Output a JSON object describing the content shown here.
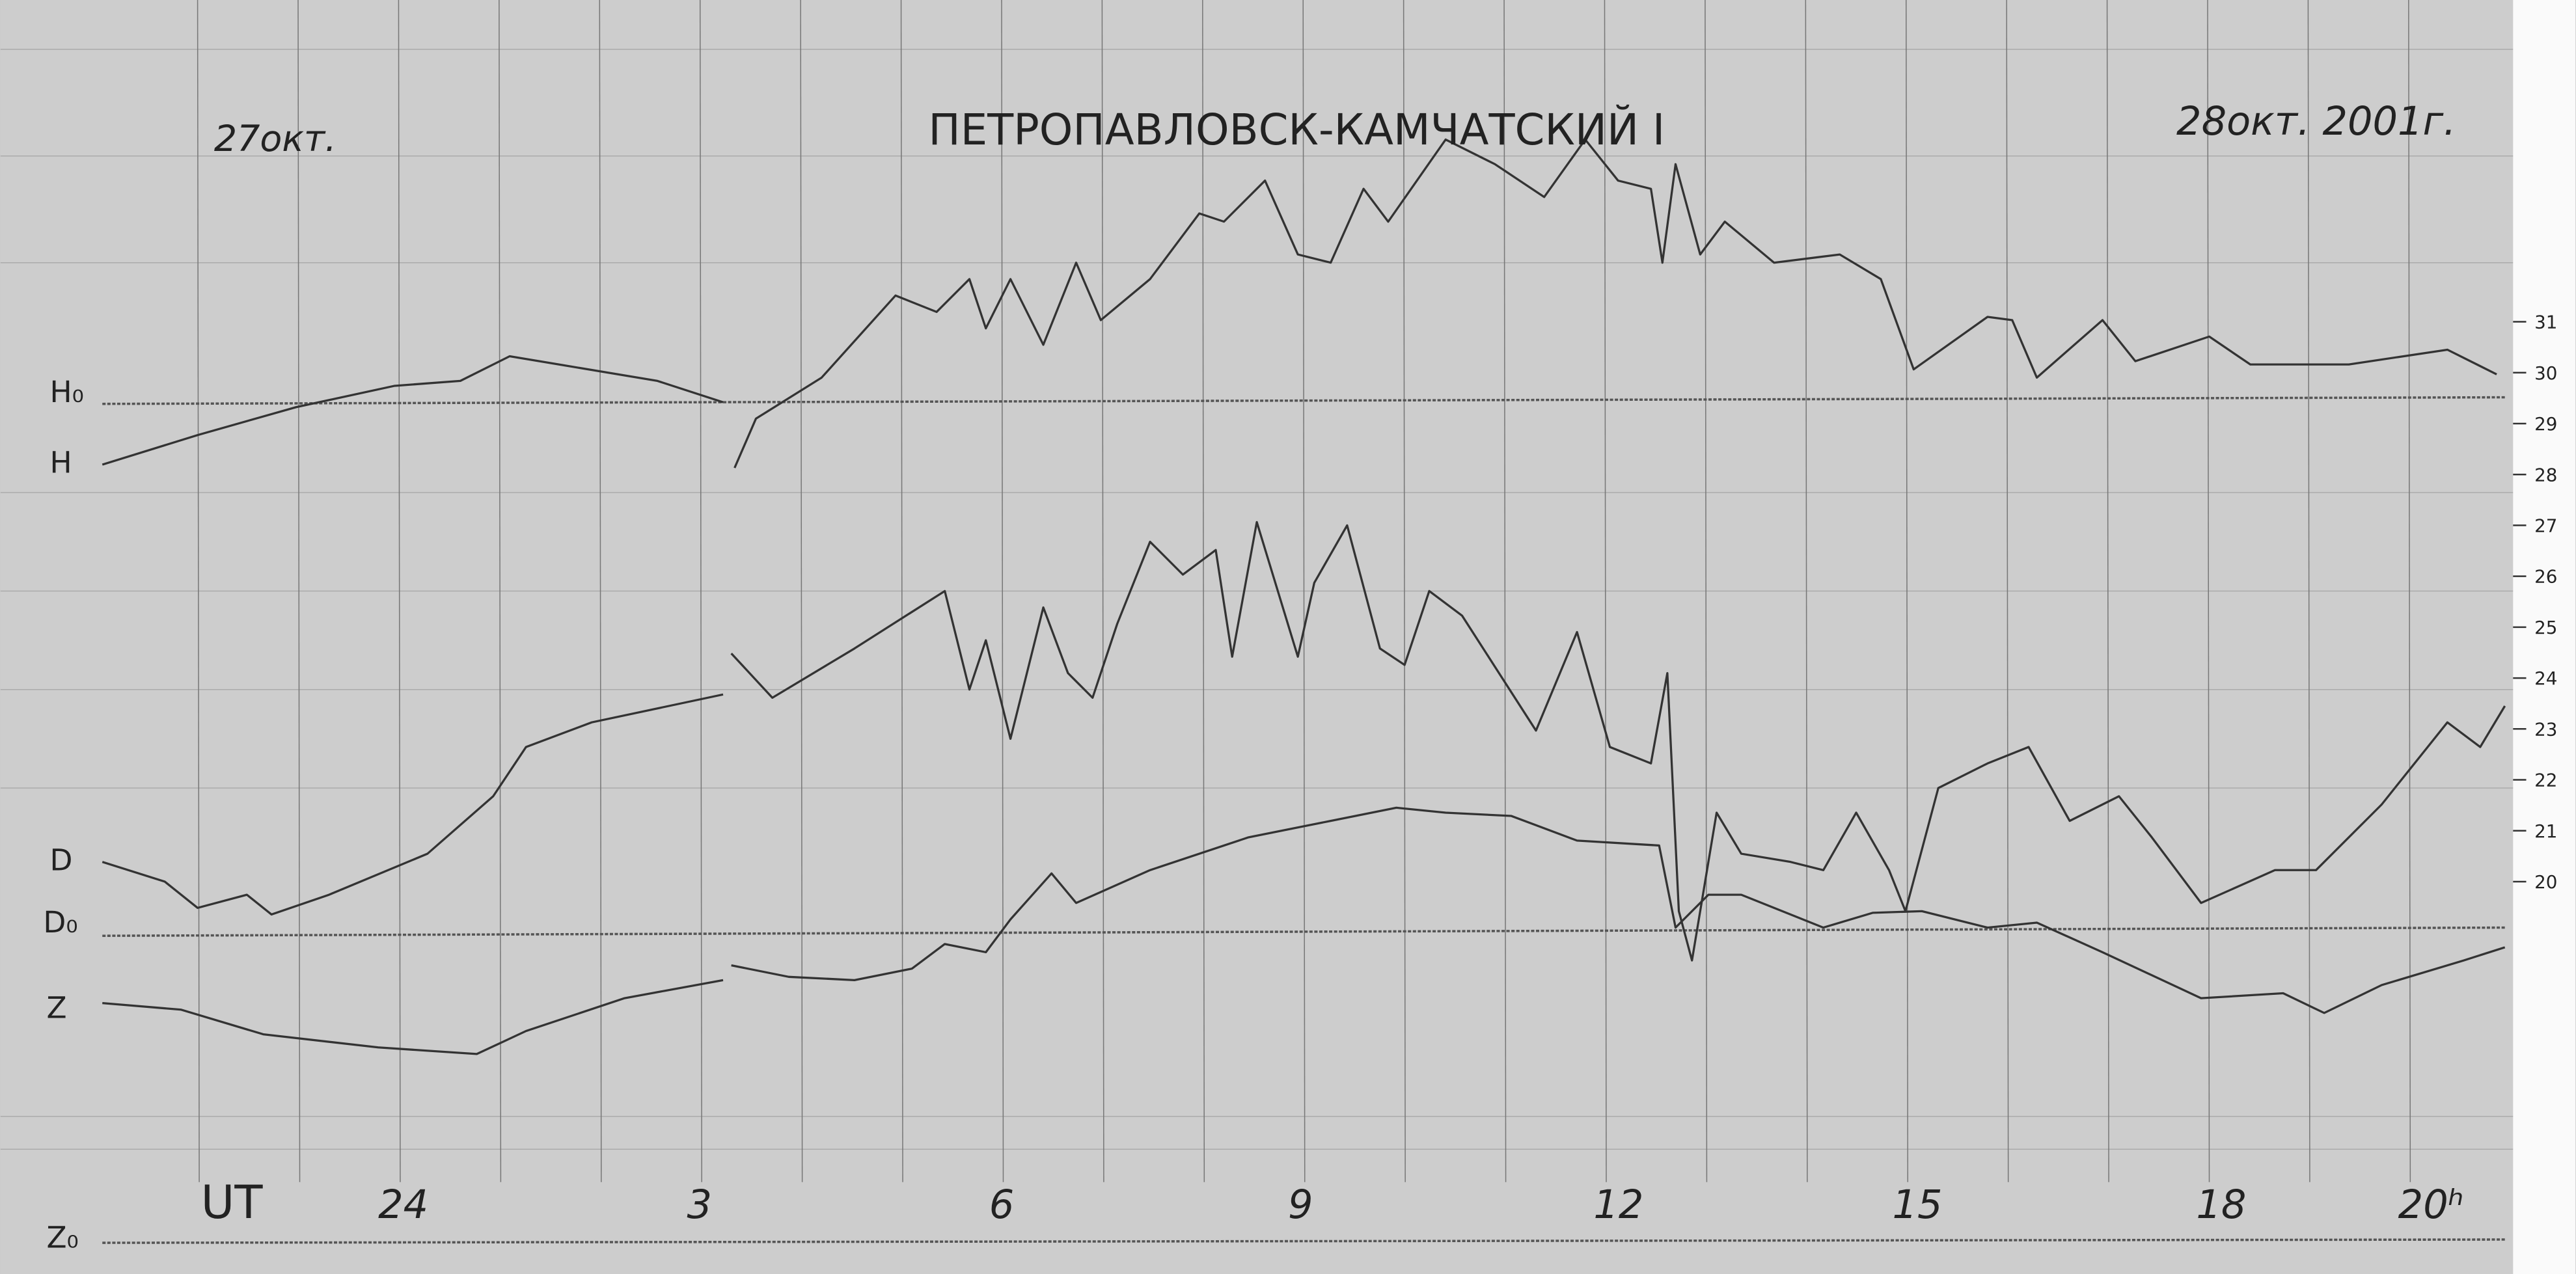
{
  "header": {
    "left_date": "27окт.",
    "title": "ПЕТРОПАВЛОВСК-КАМЧАТСКИЙ I",
    "right_date": "28окт. 2001г."
  },
  "trace_labels": {
    "h0": "H₀",
    "h": "H",
    "d": "D",
    "d0": "D₀",
    "z": "Z",
    "z0": "Z₀"
  },
  "time_axis": {
    "label": "UT",
    "hours": [
      "24",
      "3",
      "6",
      "9",
      "12",
      "15",
      "18",
      "20ʰ"
    ]
  },
  "scale": [
    "31",
    "30",
    "29",
    "28",
    "27",
    "26",
    "25",
    "24",
    "23",
    "22",
    "21",
    "20"
  ]
}
